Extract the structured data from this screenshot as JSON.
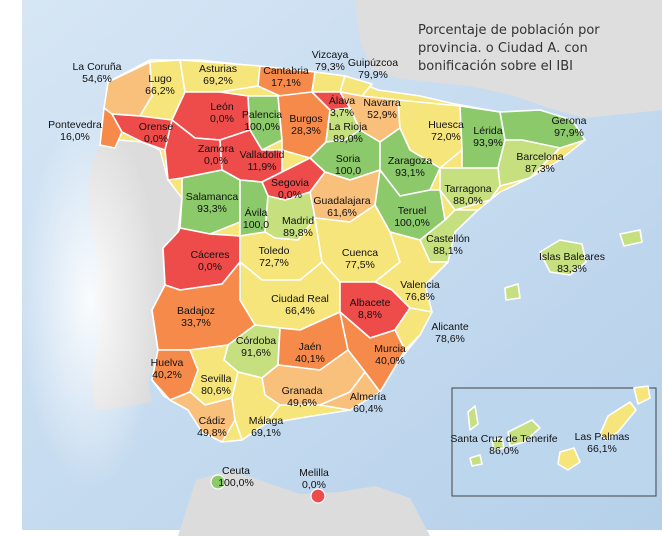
{
  "title_lines": [
    "Porcentaje de población por",
    "provincia. o Ciudad A. con",
    "bonificación sobre el IBI"
  ],
  "colors": {
    "sea": "#bdd7ee",
    "neighbor": "#dddddd",
    "scale": [
      "#ee4b4b",
      "#f58a4b",
      "#f9c07b",
      "#f5e57a",
      "#c6df7f",
      "#8cc96a"
    ]
  },
  "provinces": [
    {
      "name": "La Coruña",
      "value": "54,6%",
      "pct": 54.6
    },
    {
      "name": "Lugo",
      "value": "66,2%",
      "pct": 66.2
    },
    {
      "name": "Asturias",
      "value": "69,2%",
      "pct": 69.2
    },
    {
      "name": "Cantabria",
      "value": "17,1%",
      "pct": 17.1
    },
    {
      "name": "Vizcaya",
      "value": "79,3%",
      "pct": 79.3
    },
    {
      "name": "Guipúzcoa",
      "value": "79,9%",
      "pct": 79.9
    },
    {
      "name": "Pontevedra",
      "value": "16,0%",
      "pct": 16.0
    },
    {
      "name": "Orense",
      "value": "0,0%",
      "pct": 0.0
    },
    {
      "name": "León",
      "value": "0,0%",
      "pct": 0.0
    },
    {
      "name": "Palencia",
      "value": "100,0%",
      "pct": 100.0
    },
    {
      "name": "Burgos",
      "value": "28,3%",
      "pct": 28.3
    },
    {
      "name": "Álava",
      "value": "3,7%",
      "pct": 3.7
    },
    {
      "name": "Navarra",
      "value": "52,9%",
      "pct": 52.9
    },
    {
      "name": "La Rioja",
      "value": "89,0%",
      "pct": 89.0
    },
    {
      "name": "Huesca",
      "value": "72,0%",
      "pct": 72.0
    },
    {
      "name": "Lérida",
      "value": "93,9%",
      "pct": 93.9
    },
    {
      "name": "Gerona",
      "value": "97,9%",
      "pct": 97.9
    },
    {
      "name": "Barcelona",
      "value": "87,3%",
      "pct": 87.3
    },
    {
      "name": "Zamora",
      "value": "0,0%",
      "pct": 0.0
    },
    {
      "name": "Valladolid",
      "value": "11,9%",
      "pct": 11.9
    },
    {
      "name": "Soria",
      "value": "100,0",
      "pct": 100.0
    },
    {
      "name": "Zaragoza",
      "value": "93,1%",
      "pct": 93.1
    },
    {
      "name": "Tarragona",
      "value": "88,0%",
      "pct": 88.0
    },
    {
      "name": "Segovia",
      "value": "0,0%",
      "pct": 0.0
    },
    {
      "name": "Salamanca",
      "value": "93,3%",
      "pct": 93.3
    },
    {
      "name": "Guadalajara",
      "value": "61,6%",
      "pct": 61.6
    },
    {
      "name": "Teruel",
      "value": "100,0%",
      "pct": 100.0
    },
    {
      "name": "Ávila",
      "value": "100,0",
      "pct": 100.0
    },
    {
      "name": "Madrid",
      "value": "89,8%",
      "pct": 89.8
    },
    {
      "name": "Castellón",
      "value": "88,1%",
      "pct": 88.1
    },
    {
      "name": "Cáceres",
      "value": "0,0%",
      "pct": 0.0
    },
    {
      "name": "Toledo",
      "value": "72,7%",
      "pct": 72.7
    },
    {
      "name": "Cuenca",
      "value": "77,5%",
      "pct": 77.5
    },
    {
      "name": "Islas Baleares",
      "value": "83,3%",
      "pct": 83.3
    },
    {
      "name": "Valencia",
      "value": "76,8%",
      "pct": 76.8
    },
    {
      "name": "Ciudad Real",
      "value": "66,4%",
      "pct": 66.4
    },
    {
      "name": "Albacete",
      "value": "8,8%",
      "pct": 8.8
    },
    {
      "name": "Badajoz",
      "value": "33,7%",
      "pct": 33.7
    },
    {
      "name": "Alicante",
      "value": "78,6%",
      "pct": 78.6
    },
    {
      "name": "Córdoba",
      "value": "91,6%",
      "pct": 91.6
    },
    {
      "name": "Jaén",
      "value": "40,1%",
      "pct": 40.1
    },
    {
      "name": "Murcia",
      "value": "40,0%",
      "pct": 40.0
    },
    {
      "name": "Huelva",
      "value": "40,2%",
      "pct": 40.2
    },
    {
      "name": "Sevilla",
      "value": "80,6%",
      "pct": 80.6
    },
    {
      "name": "Granada",
      "value": "49,6%",
      "pct": 49.6
    },
    {
      "name": "Almería",
      "value": "60,4%",
      "pct": 60.4
    },
    {
      "name": "Cádiz",
      "value": "49,8%",
      "pct": 49.8
    },
    {
      "name": "Málaga",
      "value": "69,1%",
      "pct": 69.1
    },
    {
      "name": "Santa Cruz de Tenerife",
      "value": "86,0%",
      "pct": 86.0
    },
    {
      "name": "Las Palmas",
      "value": "66,1%",
      "pct": 66.1
    },
    {
      "name": "Ceuta",
      "value": "100,0%",
      "pct": 100.0
    },
    {
      "name": "Melilla",
      "value": "0,0%",
      "pct": 0.0
    }
  ]
}
